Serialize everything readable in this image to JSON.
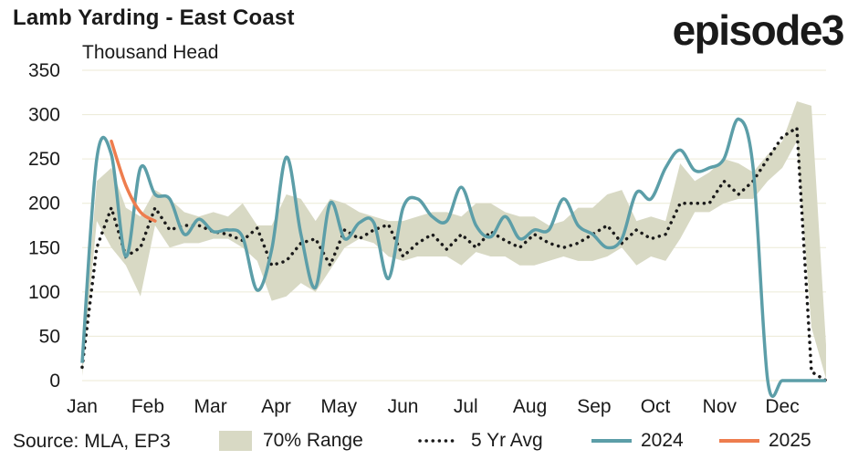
{
  "header": {
    "title": "Lamb Yarding - East Coast",
    "unit": "Thousand Head",
    "logo": "episode3"
  },
  "footer": {
    "source": "Source: MLA, EP3"
  },
  "colors": {
    "range_fill": "#d8d9c4",
    "avg_line": "#1a1a1a",
    "line_2024": "#5c9ea8",
    "line_2025": "#ee7d4e",
    "grid": "#ecead6"
  },
  "chart_data": {
    "type": "line",
    "title": "Lamb Yarding - East Coast",
    "ylabel": "Thousand Head",
    "xlabel": "",
    "ylim": [
      0,
      350
    ],
    "yticks": [
      0,
      50,
      100,
      150,
      200,
      250,
      300,
      350
    ],
    "xlim": [
      1,
      52
    ],
    "month_ticks": [
      {
        "label": "Jan",
        "week": 1
      },
      {
        "label": "Feb",
        "week": 5.5
      },
      {
        "label": "Mar",
        "week": 9.8
      },
      {
        "label": "Apr",
        "week": 14.3
      },
      {
        "label": "May",
        "week": 18.6
      },
      {
        "label": "Jun",
        "week": 23
      },
      {
        "label": "Jul",
        "week": 27.3
      },
      {
        "label": "Aug",
        "week": 31.7
      },
      {
        "label": "Sep",
        "week": 36.1
      },
      {
        "label": "Oct",
        "week": 40.3
      },
      {
        "label": "Nov",
        "week": 44.7
      },
      {
        "label": "Dec",
        "week": 49
      }
    ],
    "grid": true,
    "legend_position": "bottom",
    "legend": [
      "70% Range",
      "5 Yr Avg",
      "2024",
      "2025"
    ],
    "range_70pct": {
      "name": "70% Range",
      "weeks": [
        1,
        2,
        3,
        4,
        5,
        6,
        7,
        8,
        9,
        10,
        11,
        12,
        13,
        14,
        15,
        16,
        17,
        18,
        19,
        20,
        21,
        22,
        23,
        24,
        25,
        26,
        27,
        28,
        29,
        30,
        31,
        32,
        33,
        34,
        35,
        36,
        37,
        38,
        39,
        40,
        41,
        42,
        43,
        44,
        45,
        46,
        47,
        48,
        49,
        50,
        51,
        52
      ],
      "low": [
        5,
        180,
        150,
        130,
        95,
        175,
        150,
        155,
        155,
        160,
        160,
        150,
        135,
        90,
        95,
        110,
        100,
        125,
        150,
        160,
        155,
        140,
        135,
        140,
        140,
        140,
        130,
        145,
        140,
        140,
        130,
        130,
        135,
        140,
        135,
        135,
        140,
        150,
        130,
        140,
        135,
        160,
        190,
        190,
        200,
        205,
        205,
        225,
        240,
        270,
        60,
        2
      ],
      "high": [
        25,
        225,
        240,
        195,
        185,
        215,
        205,
        190,
        185,
        190,
        185,
        200,
        175,
        175,
        210,
        205,
        180,
        205,
        200,
        190,
        185,
        180,
        180,
        185,
        190,
        190,
        185,
        200,
        200,
        190,
        185,
        185,
        175,
        180,
        195,
        195,
        210,
        215,
        180,
        185,
        180,
        245,
        225,
        235,
        250,
        245,
        235,
        255,
        270,
        315,
        310,
        40
      ]
    },
    "series": [
      {
        "name": "5 Yr Avg",
        "weeks": [
          1,
          2,
          3,
          4,
          5,
          6,
          7,
          8,
          9,
          10,
          11,
          12,
          13,
          14,
          15,
          16,
          17,
          18,
          19,
          20,
          21,
          22,
          23,
          24,
          25,
          26,
          27,
          28,
          29,
          30,
          31,
          32,
          33,
          34,
          35,
          36,
          37,
          38,
          39,
          40,
          41,
          42,
          43,
          44,
          45,
          46,
          47,
          48,
          49,
          50,
          51,
          52
        ],
        "values": [
          15,
          150,
          195,
          140,
          150,
          195,
          170,
          175,
          175,
          168,
          165,
          158,
          172,
          130,
          135,
          155,
          160,
          130,
          170,
          160,
          170,
          176,
          140,
          155,
          165,
          148,
          165,
          150,
          168,
          158,
          150,
          165,
          155,
          150,
          155,
          165,
          175,
          155,
          170,
          160,
          165,
          200,
          200,
          200,
          225,
          210,
          225,
          250,
          275,
          285,
          10,
          0
        ]
      },
      {
        "name": "2024",
        "weeks": [
          1,
          2,
          3,
          4,
          5,
          6,
          7,
          8,
          9,
          10,
          11,
          12,
          13,
          14,
          15,
          16,
          17,
          18,
          19,
          20,
          21,
          22,
          23,
          24,
          25,
          26,
          27,
          28,
          29,
          30,
          31,
          32,
          33,
          34,
          35,
          36,
          37,
          38,
          39,
          40,
          41,
          42,
          43,
          44,
          45,
          46,
          47,
          48,
          49,
          50,
          51,
          52
        ],
        "values": [
          20,
          250,
          255,
          140,
          240,
          210,
          205,
          165,
          182,
          168,
          170,
          162,
          102,
          148,
          252,
          165,
          105,
          200,
          160,
          178,
          178,
          115,
          195,
          205,
          185,
          180,
          218,
          175,
          162,
          185,
          160,
          170,
          170,
          205,
          175,
          165,
          150,
          160,
          212,
          205,
          240,
          260,
          237,
          240,
          250,
          295,
          240,
          0,
          0,
          0,
          0,
          0
        ]
      },
      {
        "name": "2025",
        "weeks": [
          3,
          4,
          5,
          6
        ],
        "values": [
          270,
          220,
          190,
          180
        ]
      }
    ]
  }
}
